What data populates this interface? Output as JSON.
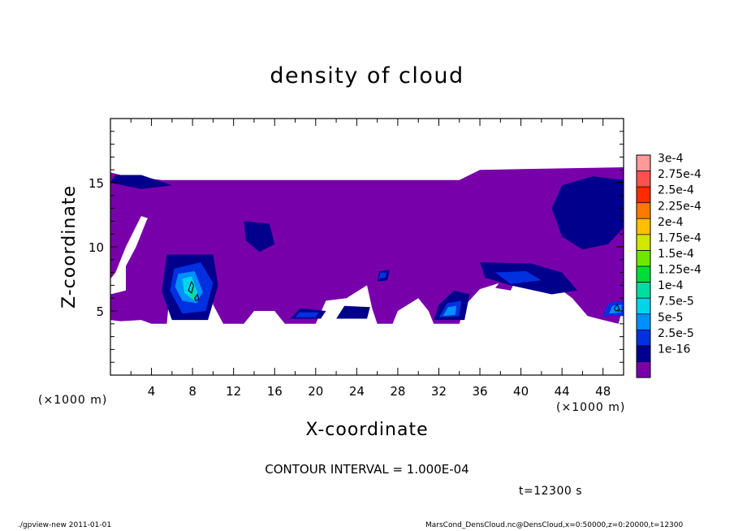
{
  "chart_data": {
    "type": "heatmap",
    "title": "density of cloud",
    "xlabel": "X-coordinate",
    "ylabel": "Z-coordinate",
    "x_unit_label": "(×1000 m)",
    "y_unit_label": "(×1000 m)",
    "xlim": [
      0,
      50
    ],
    "ylim": [
      0,
      20
    ],
    "x_ticks": [
      4,
      8,
      12,
      16,
      20,
      24,
      28,
      32,
      36,
      40,
      44,
      48
    ],
    "y_ticks": [
      5,
      10,
      15
    ],
    "contour_interval_text": "CONTOUR INTERVAL = 1.000E-04",
    "time_text": "t=12300 s",
    "colorbar": {
      "labels": [
        "3e-4",
        "2.75e-4",
        "2.5e-4",
        "2.25e-4",
        "2e-4",
        "1.75e-4",
        "1.5e-4",
        "1.25e-4",
        "1e-4",
        "7.5e-5",
        "5e-5",
        "2.5e-5",
        "1e-16"
      ],
      "colors": [
        "#ff9a9a",
        "#ff5050",
        "#ff2a00",
        "#ff7800",
        "#ffc000",
        "#d2e600",
        "#6ee600",
        "#00dc3c",
        "#00dca0",
        "#00d4e6",
        "#0090ff",
        "#0030e0",
        "#00008c",
        "#7800aa"
      ]
    },
    "field_regions": [
      {
        "level": 0,
        "poly": [
          [
            0,
            15.8
          ],
          [
            1,
            15.6
          ],
          [
            5,
            15.2
          ],
          [
            34,
            15.2
          ],
          [
            36,
            16
          ],
          [
            50,
            16.2
          ],
          [
            50,
            5.5
          ],
          [
            49.5,
            4
          ],
          [
            48,
            4.3
          ],
          [
            46.5,
            4.6
          ],
          [
            45,
            6
          ],
          [
            43,
            7.2
          ],
          [
            41,
            7.4
          ],
          [
            38,
            7.2
          ],
          [
            36,
            6.7
          ],
          [
            34.5,
            5.4
          ],
          [
            34,
            4
          ],
          [
            31.5,
            4
          ],
          [
            31,
            5
          ],
          [
            30,
            6
          ],
          [
            28,
            5
          ],
          [
            27.5,
            4
          ],
          [
            26,
            4
          ],
          [
            25.5,
            5.2
          ],
          [
            25,
            7
          ],
          [
            23,
            6
          ],
          [
            21,
            5.8
          ],
          [
            20,
            4
          ],
          [
            17,
            4
          ],
          [
            16,
            5
          ],
          [
            14,
            5
          ],
          [
            13,
            4
          ],
          [
            11,
            4
          ],
          [
            10,
            5.5
          ],
          [
            10,
            8.5
          ],
          [
            9,
            9.4
          ],
          [
            7,
            9.2
          ],
          [
            6,
            8.5
          ],
          [
            5.5,
            4
          ],
          [
            4,
            4
          ],
          [
            3,
            4.3
          ],
          [
            1,
            4.2
          ],
          [
            0,
            4.3
          ],
          [
            0,
            6.3
          ],
          [
            1.5,
            6.6
          ],
          [
            1.5,
            8.5
          ],
          [
            2.5,
            10
          ],
          [
            3.5,
            12
          ],
          [
            4,
            12.8
          ],
          [
            5,
            12.5
          ],
          [
            8,
            11.8
          ],
          [
            9,
            12
          ],
          [
            12,
            12.5
          ],
          [
            13,
            13
          ],
          [
            16,
            12.7
          ],
          [
            17,
            13
          ],
          [
            19,
            13
          ],
          [
            20,
            12.5
          ],
          [
            21,
            12
          ],
          [
            22,
            12.6
          ],
          [
            24,
            12.8
          ],
          [
            26,
            12.4
          ],
          [
            27,
            11.5
          ],
          [
            28,
            12.2
          ],
          [
            30,
            12
          ],
          [
            31,
            11.5
          ],
          [
            31,
            10
          ],
          [
            30,
            9.8
          ],
          [
            28,
            10
          ],
          [
            27,
            9.6
          ],
          [
            25,
            9.5
          ],
          [
            24,
            10.5
          ],
          [
            22,
            10.4
          ],
          [
            20,
            10.7
          ],
          [
            19,
            10.5
          ],
          [
            17,
            10.3
          ],
          [
            15,
            9.3
          ],
          [
            14,
            9.5
          ],
          [
            13,
            10
          ],
          [
            11,
            11
          ],
          [
            9,
            11
          ],
          [
            7,
            10.6
          ],
          [
            5,
            10.3
          ],
          [
            4.5,
            9.5
          ],
          [
            5,
            8
          ],
          [
            4,
            6.7
          ],
          [
            2,
            6.5
          ],
          [
            1.8,
            8
          ],
          [
            2.2,
            9.5
          ],
          [
            3,
            10.5
          ],
          [
            4,
            11.5
          ],
          [
            4.5,
            12
          ],
          [
            3,
            12.4
          ],
          [
            1.5,
            10
          ],
          [
            0.5,
            8
          ],
          [
            0,
            7.5
          ],
          [
            0,
            15.8
          ]
        ]
      },
      {
        "level": 0,
        "poly": [
          [
            16,
            13.6
          ],
          [
            18,
            13.4
          ],
          [
            19,
            13.8
          ],
          [
            18,
            14.3
          ],
          [
            16.5,
            14.1
          ]
        ]
      },
      {
        "level": 0,
        "poly": [
          [
            29,
            11.6
          ],
          [
            31,
            11.8
          ],
          [
            33,
            11.5
          ],
          [
            33,
            12.2
          ],
          [
            30,
            12.3
          ]
        ]
      },
      {
        "level": 0,
        "poly": [
          [
            40,
            11.5
          ],
          [
            42.5,
            11.4
          ],
          [
            43.5,
            12
          ],
          [
            42,
            12.4
          ],
          [
            40.5,
            12.2
          ]
        ]
      },
      {
        "level": 0,
        "poly": [
          [
            37.5,
            6.8
          ],
          [
            39,
            6.6
          ],
          [
            39.3,
            7.1
          ],
          [
            38,
            7.3
          ]
        ]
      },
      {
        "level": 1,
        "poly": [
          [
            0,
            15
          ],
          [
            3,
            14.5
          ],
          [
            6,
            14.8
          ],
          [
            3,
            15.6
          ],
          [
            0.5,
            15.6
          ]
        ]
      },
      {
        "level": 1,
        "poly": [
          [
            44,
            14.8
          ],
          [
            47,
            15.5
          ],
          [
            50,
            15.2
          ],
          [
            50,
            11.5
          ],
          [
            48.5,
            10.2
          ],
          [
            46,
            9.8
          ],
          [
            44,
            10.8
          ],
          [
            43,
            13
          ]
        ]
      },
      {
        "level": 1,
        "poly": [
          [
            13,
            12
          ],
          [
            15.5,
            11.8
          ],
          [
            16,
            10.2
          ],
          [
            14.5,
            9.6
          ],
          [
            13.2,
            10.5
          ]
        ]
      },
      {
        "level": 1,
        "poly": [
          [
            5.5,
            9.4
          ],
          [
            10,
            9.4
          ],
          [
            10.5,
            7
          ],
          [
            9.5,
            4.3
          ],
          [
            6,
            4.3
          ],
          [
            5,
            6.5
          ]
        ]
      },
      {
        "level": 1,
        "poly": [
          [
            36,
            8.8
          ],
          [
            41,
            8.7
          ],
          [
            44,
            8
          ],
          [
            45.5,
            6.6
          ],
          [
            43,
            6.3
          ],
          [
            39,
            7
          ],
          [
            36.5,
            7.6
          ]
        ]
      },
      {
        "level": 1,
        "poly": [
          [
            31.5,
            4.3
          ],
          [
            34.5,
            4.3
          ],
          [
            35,
            6.3
          ],
          [
            33.5,
            6.6
          ],
          [
            32,
            5.5
          ]
        ]
      },
      {
        "level": 1,
        "poly": [
          [
            17.5,
            4.4
          ],
          [
            20.5,
            4.4
          ],
          [
            21,
            5
          ],
          [
            18.5,
            5.2
          ]
        ]
      },
      {
        "level": 1,
        "poly": [
          [
            22,
            4.4
          ],
          [
            25,
            4.4
          ],
          [
            25.3,
            5.3
          ],
          [
            22.8,
            5.4
          ]
        ]
      },
      {
        "level": 1,
        "poly": [
          [
            26,
            7.3
          ],
          [
            27,
            7.4
          ],
          [
            27.2,
            8.2
          ],
          [
            26.2,
            8.1
          ]
        ]
      },
      {
        "level": 2,
        "poly": [
          [
            6.2,
            8.3
          ],
          [
            8.8,
            8.8
          ],
          [
            10,
            7.2
          ],
          [
            9.3,
            5
          ],
          [
            7,
            4.8
          ],
          [
            5.8,
            6.6
          ]
        ]
      },
      {
        "level": 2,
        "poly": [
          [
            32,
            4.5
          ],
          [
            34,
            4.6
          ],
          [
            34.2,
            5.8
          ],
          [
            32.8,
            5.6
          ]
        ]
      },
      {
        "level": 2,
        "poly": [
          [
            37.5,
            8
          ],
          [
            40.5,
            8.1
          ],
          [
            42,
            7.4
          ],
          [
            39,
            7.1
          ]
        ]
      },
      {
        "level": 2,
        "poly": [
          [
            48,
            4.6
          ],
          [
            50,
            4.6
          ],
          [
            50,
            5.8
          ],
          [
            48.5,
            5.6
          ]
        ]
      },
      {
        "level": 2,
        "poly": [
          [
            18,
            4.5
          ],
          [
            20,
            4.5
          ],
          [
            20.3,
            4.9
          ],
          [
            18.4,
            4.9
          ]
        ]
      },
      {
        "level": 2,
        "poly": [
          [
            26.1,
            7.5
          ],
          [
            26.8,
            7.6
          ],
          [
            26.9,
            8
          ],
          [
            26.3,
            8
          ]
        ]
      },
      {
        "level": 3,
        "poly": [
          [
            6.6,
            7.9
          ],
          [
            8.2,
            8.1
          ],
          [
            9,
            6.5
          ],
          [
            8.4,
            5.6
          ],
          [
            7,
            5.8
          ],
          [
            6.3,
            6.9
          ]
        ]
      },
      {
        "level": 3,
        "poly": [
          [
            32.4,
            4.6
          ],
          [
            33.6,
            4.7
          ],
          [
            33.7,
            5.4
          ],
          [
            32.9,
            5.3
          ]
        ]
      },
      {
        "level": 3,
        "poly": [
          [
            48.6,
            4.8
          ],
          [
            49.8,
            4.9
          ],
          [
            49.8,
            5.5
          ],
          [
            48.9,
            5.4
          ]
        ]
      },
      {
        "level": 4,
        "poly": [
          [
            7,
            7.5
          ],
          [
            7.9,
            7.7
          ],
          [
            8.5,
            6.4
          ],
          [
            8,
            5.9
          ],
          [
            7.2,
            6.4
          ]
        ]
      },
      {
        "level": 5,
        "poly": [
          [
            7.7,
            6.5
          ],
          [
            8.1,
            6.9
          ],
          [
            8.3,
            6.2
          ],
          [
            8.2,
            5.8
          ],
          [
            7.9,
            6
          ]
        ]
      }
    ],
    "contour_lines": [
      {
        "level": "1e-4",
        "poly": [
          [
            7.6,
            6.6
          ],
          [
            7.9,
            7.3
          ],
          [
            8.1,
            7
          ],
          [
            7.9,
            6.4
          ]
        ]
      },
      {
        "level": "1e-4",
        "poly": [
          [
            8.2,
            6
          ],
          [
            8.5,
            6.3
          ],
          [
            8.6,
            5.9
          ],
          [
            8.3,
            5.8
          ]
        ]
      },
      {
        "level": "1e-4",
        "poly": [
          [
            49.1,
            5.2
          ],
          [
            49.4,
            5.5
          ],
          [
            49.6,
            5.1
          ],
          [
            49.2,
            5
          ]
        ]
      }
    ]
  },
  "footer": {
    "left": "./gpview-new  2011-01-01",
    "right": "MarsCond_DensCloud.nc@DensCloud,x=0:50000,z=0:20000,t=12300"
  }
}
